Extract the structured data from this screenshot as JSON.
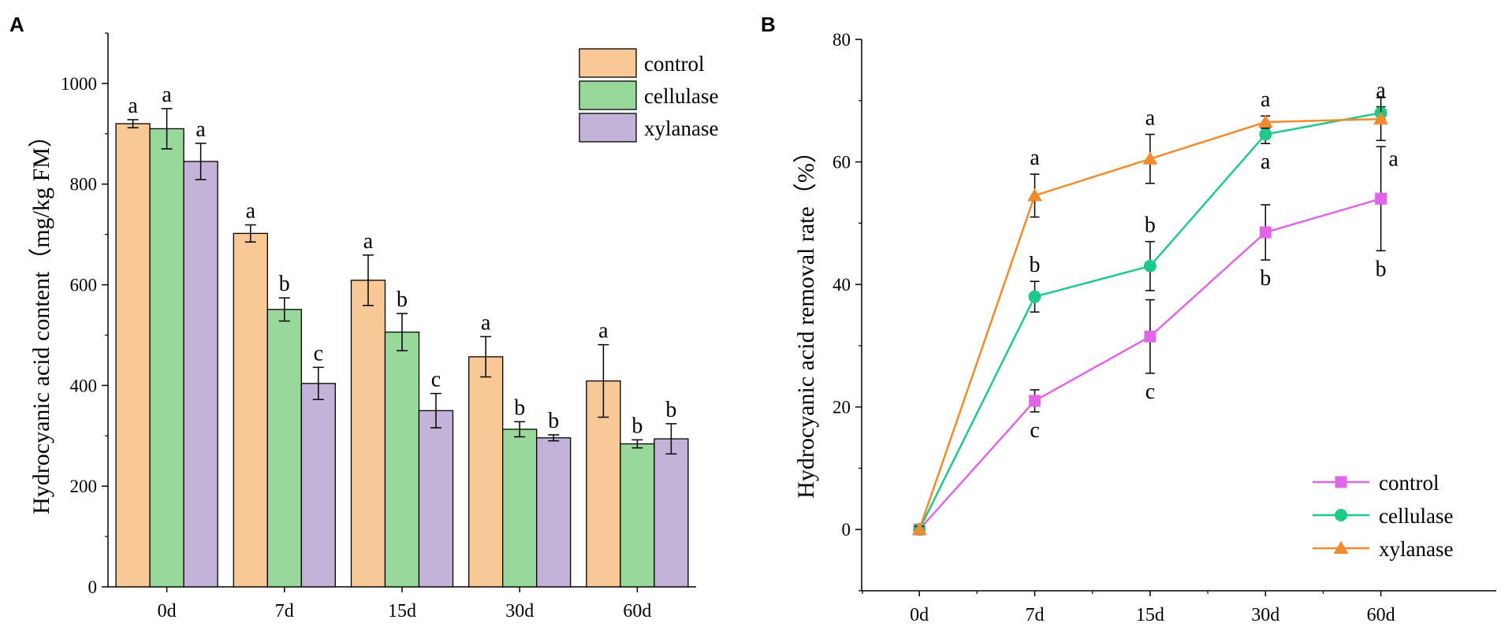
{
  "chart_data": [
    {
      "panel": "A",
      "type": "bar",
      "ylabel": "Hydrocyanic acid content（mg/kg FM）",
      "xlabel": "",
      "ylim": [
        0,
        1100
      ],
      "yticks": [
        0,
        200,
        400,
        600,
        800,
        1000
      ],
      "categories": [
        "0d",
        "7d",
        "15d",
        "30d",
        "60d"
      ],
      "legend_position": "top-right",
      "series": [
        {
          "name": "control",
          "color": "#F9C897",
          "values": [
            920,
            702,
            609,
            457,
            409
          ],
          "errors": [
            8,
            17,
            50,
            40,
            72
          ],
          "letters": [
            "a",
            "a",
            "a",
            "a",
            "a"
          ]
        },
        {
          "name": "cellulase",
          "color": "#99D89B",
          "values": [
            910,
            551,
            506,
            313,
            284
          ],
          "errors": [
            40,
            23,
            37,
            15,
            8
          ],
          "letters": [
            "a",
            "b",
            "b",
            "b",
            "b"
          ]
        },
        {
          "name": "xylanase",
          "color": "#C4B3D8",
          "values": [
            845,
            404,
            350,
            296,
            294
          ],
          "errors": [
            36,
            32,
            34,
            6,
            30
          ],
          "letters": [
            "a",
            "c",
            "c",
            "b",
            "b"
          ]
        }
      ]
    },
    {
      "panel": "B",
      "type": "line",
      "ylabel": "Hydrocyanic acid removal rate（%）",
      "xlabel": "",
      "ylim": [
        -10,
        80
      ],
      "yticks": [
        0,
        20,
        40,
        60,
        80
      ],
      "categories": [
        "0d",
        "7d",
        "15d",
        "30d",
        "60d"
      ],
      "legend_position": "bottom-right",
      "series": [
        {
          "name": "control",
          "color": "#E066E8",
          "marker": "square",
          "values": [
            0,
            21,
            31.5,
            48.5,
            54
          ],
          "errors": [
            0.5,
            1.8,
            6,
            4.5,
            8.5
          ],
          "letters": [
            "",
            "c",
            "c",
            "b",
            "b"
          ],
          "letter_side": [
            "",
            "below",
            "below",
            "below",
            "below"
          ]
        },
        {
          "name": "cellulase",
          "color": "#1FC98A",
          "marker": "circle",
          "values": [
            0,
            38,
            43,
            64.5,
            68
          ],
          "errors": [
            0.5,
            2.5,
            4,
            1.5,
            1
          ],
          "letters": [
            "",
            "b",
            "b",
            "a",
            "a"
          ],
          "letter_side": [
            "",
            "above",
            "above",
            "below",
            "above"
          ]
        },
        {
          "name": "xylanase",
          "color": "#F28A2E",
          "marker": "triangle",
          "values": [
            0,
            54.5,
            60.5,
            66.5,
            67
          ],
          "errors": [
            0.5,
            3.5,
            4,
            1,
            3.5
          ],
          "letters": [
            "",
            "a",
            "a",
            "a",
            "a"
          ],
          "letter_side": [
            "",
            "above",
            "above",
            "above",
            "below"
          ]
        }
      ]
    }
  ]
}
